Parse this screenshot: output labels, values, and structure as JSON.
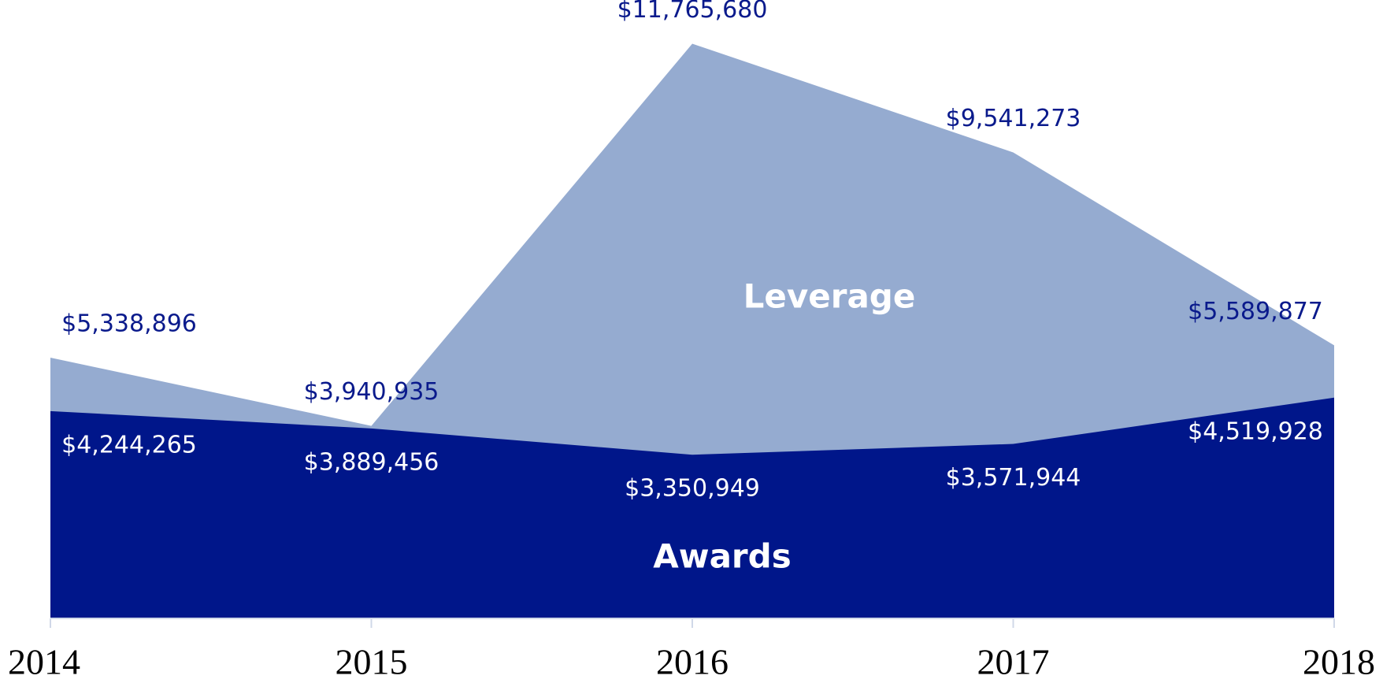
{
  "chart_data": {
    "type": "area",
    "categories": [
      "2014",
      "2015",
      "2016",
      "2017",
      "2018"
    ],
    "series": [
      {
        "name": "Leverage",
        "color": "#95abd0",
        "values": [
          5338896,
          3940935,
          11765680,
          9541273,
          5589877
        ],
        "value_labels": [
          "$5,338,896",
          "$3,940,935",
          "$11,765,680",
          "$9,541,273",
          "$5,589,877"
        ]
      },
      {
        "name": "Awards",
        "color": "#00168a",
        "values": [
          4244265,
          3889456,
          3350949,
          3571944,
          4519928
        ],
        "value_labels": [
          "$4,244,265",
          "$3,889,456",
          "$3,350,949",
          "$3,571,944",
          "$4,519,928"
        ]
      }
    ],
    "ylim": [
      0,
      12000000
    ]
  }
}
